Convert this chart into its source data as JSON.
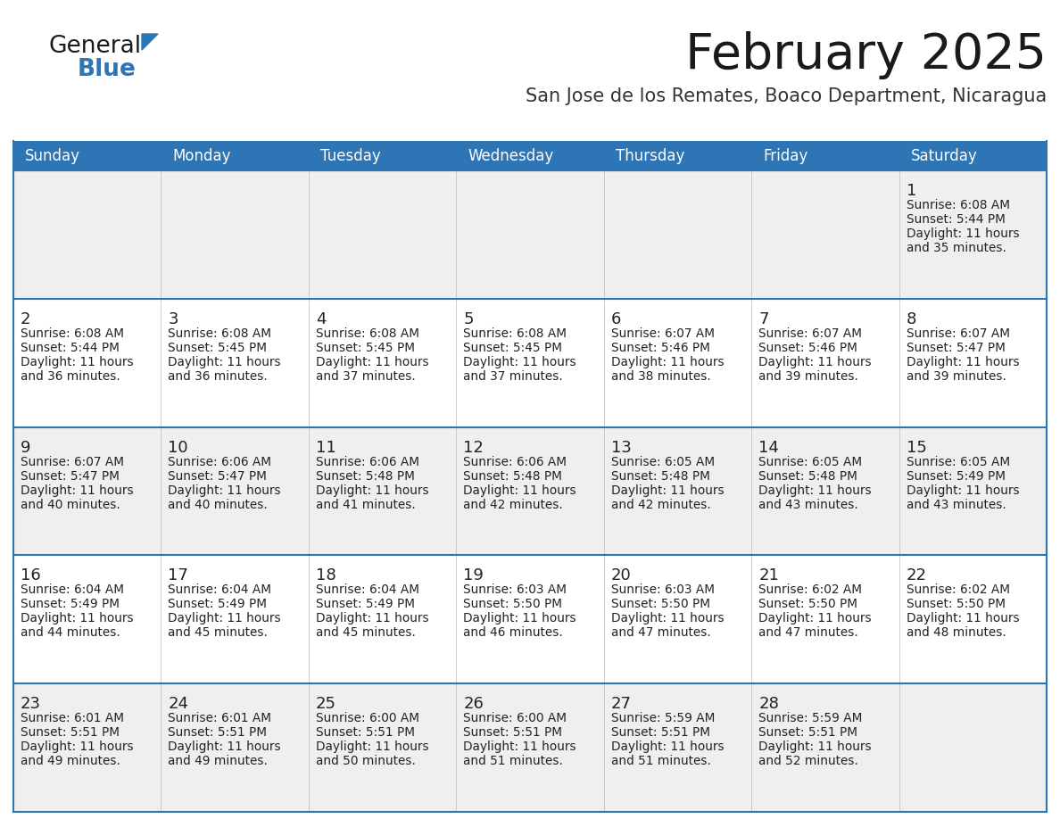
{
  "title": "February 2025",
  "subtitle": "San Jose de los Remates, Boaco Department, Nicaragua",
  "days_of_week": [
    "Sunday",
    "Monday",
    "Tuesday",
    "Wednesday",
    "Thursday",
    "Friday",
    "Saturday"
  ],
  "header_bg": "#2E75B6",
  "header_text": "#FFFFFF",
  "cell_bg_odd": "#EFEFEF",
  "cell_bg_even": "#FFFFFF",
  "border_color": "#2E75B6",
  "text_color": "#222222",
  "calendar": [
    [
      null,
      null,
      null,
      null,
      null,
      null,
      {
        "day": 1,
        "sunrise": "6:08 AM",
        "sunset": "5:44 PM",
        "daylight": "11 hours and 35 minutes."
      }
    ],
    [
      {
        "day": 2,
        "sunrise": "6:08 AM",
        "sunset": "5:44 PM",
        "daylight": "11 hours and 36 minutes."
      },
      {
        "day": 3,
        "sunrise": "6:08 AM",
        "sunset": "5:45 PM",
        "daylight": "11 hours and 36 minutes."
      },
      {
        "day": 4,
        "sunrise": "6:08 AM",
        "sunset": "5:45 PM",
        "daylight": "11 hours and 37 minutes."
      },
      {
        "day": 5,
        "sunrise": "6:08 AM",
        "sunset": "5:45 PM",
        "daylight": "11 hours and 37 minutes."
      },
      {
        "day": 6,
        "sunrise": "6:07 AM",
        "sunset": "5:46 PM",
        "daylight": "11 hours and 38 minutes."
      },
      {
        "day": 7,
        "sunrise": "6:07 AM",
        "sunset": "5:46 PM",
        "daylight": "11 hours and 39 minutes."
      },
      {
        "day": 8,
        "sunrise": "6:07 AM",
        "sunset": "5:47 PM",
        "daylight": "11 hours and 39 minutes."
      }
    ],
    [
      {
        "day": 9,
        "sunrise": "6:07 AM",
        "sunset": "5:47 PM",
        "daylight": "11 hours and 40 minutes."
      },
      {
        "day": 10,
        "sunrise": "6:06 AM",
        "sunset": "5:47 PM",
        "daylight": "11 hours and 40 minutes."
      },
      {
        "day": 11,
        "sunrise": "6:06 AM",
        "sunset": "5:48 PM",
        "daylight": "11 hours and 41 minutes."
      },
      {
        "day": 12,
        "sunrise": "6:06 AM",
        "sunset": "5:48 PM",
        "daylight": "11 hours and 42 minutes."
      },
      {
        "day": 13,
        "sunrise": "6:05 AM",
        "sunset": "5:48 PM",
        "daylight": "11 hours and 42 minutes."
      },
      {
        "day": 14,
        "sunrise": "6:05 AM",
        "sunset": "5:48 PM",
        "daylight": "11 hours and 43 minutes."
      },
      {
        "day": 15,
        "sunrise": "6:05 AM",
        "sunset": "5:49 PM",
        "daylight": "11 hours and 43 minutes."
      }
    ],
    [
      {
        "day": 16,
        "sunrise": "6:04 AM",
        "sunset": "5:49 PM",
        "daylight": "11 hours and 44 minutes."
      },
      {
        "day": 17,
        "sunrise": "6:04 AM",
        "sunset": "5:49 PM",
        "daylight": "11 hours and 45 minutes."
      },
      {
        "day": 18,
        "sunrise": "6:04 AM",
        "sunset": "5:49 PM",
        "daylight": "11 hours and 45 minutes."
      },
      {
        "day": 19,
        "sunrise": "6:03 AM",
        "sunset": "5:50 PM",
        "daylight": "11 hours and 46 minutes."
      },
      {
        "day": 20,
        "sunrise": "6:03 AM",
        "sunset": "5:50 PM",
        "daylight": "11 hours and 47 minutes."
      },
      {
        "day": 21,
        "sunrise": "6:02 AM",
        "sunset": "5:50 PM",
        "daylight": "11 hours and 47 minutes."
      },
      {
        "day": 22,
        "sunrise": "6:02 AM",
        "sunset": "5:50 PM",
        "daylight": "11 hours and 48 minutes."
      }
    ],
    [
      {
        "day": 23,
        "sunrise": "6:01 AM",
        "sunset": "5:51 PM",
        "daylight": "11 hours and 49 minutes."
      },
      {
        "day": 24,
        "sunrise": "6:01 AM",
        "sunset": "5:51 PM",
        "daylight": "11 hours and 49 minutes."
      },
      {
        "day": 25,
        "sunrise": "6:00 AM",
        "sunset": "5:51 PM",
        "daylight": "11 hours and 50 minutes."
      },
      {
        "day": 26,
        "sunrise": "6:00 AM",
        "sunset": "5:51 PM",
        "daylight": "11 hours and 51 minutes."
      },
      {
        "day": 27,
        "sunrise": "5:59 AM",
        "sunset": "5:51 PM",
        "daylight": "11 hours and 51 minutes."
      },
      {
        "day": 28,
        "sunrise": "5:59 AM",
        "sunset": "5:51 PM",
        "daylight": "11 hours and 52 minutes."
      },
      null
    ]
  ]
}
